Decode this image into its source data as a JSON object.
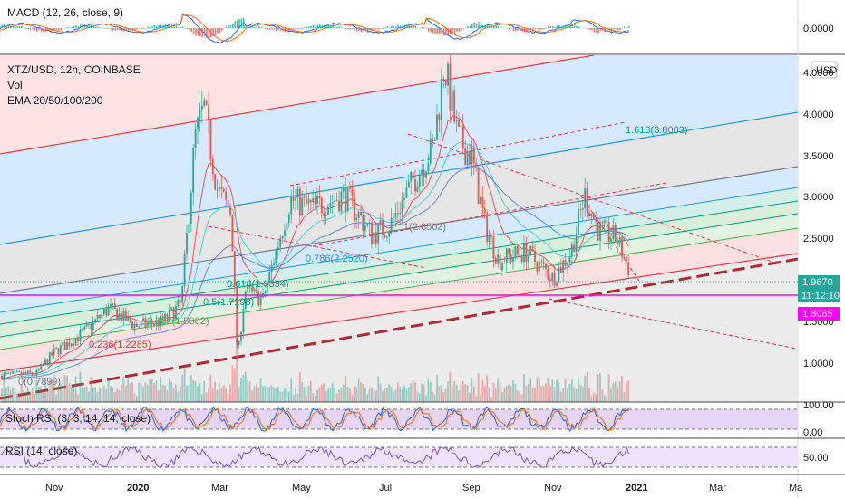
{
  "colors": {
    "background": "#ffffff",
    "up": "#26a69a",
    "down": "#ef5350",
    "macd_line": "#2962ff",
    "signal_line": "#ff6d00",
    "rsi_line": "#7e57c2",
    "stoch_k": "#2962ff",
    "stoch_d": "#ff6d00",
    "price_line": "#ff00ff",
    "trend_red": "#f23645",
    "grid": "#f0f3fa"
  },
  "panes": {
    "macd": {
      "label": "MACD (12, 26, close, 9)",
      "axis_value": "0.0000"
    },
    "price": {
      "legend": [
        "XTZ/USD, 12h, COINBASE",
        "Vol",
        "EMA 20/50/100/200"
      ],
      "currency_badge": "USD",
      "axis_ticks": [
        "4.0000",
        "3.5000",
        "3.0000",
        "2.5000",
        "1.5000",
        "1.0000"
      ],
      "current_price": "1.9670",
      "countdown": "11:12:10",
      "line_price": "1.8085"
    },
    "stoch": {
      "label": "Stoch RSI (3, 3, 14, 14, close)",
      "axis_ticks": [
        "100.00",
        "0.00"
      ]
    },
    "rsi": {
      "label": "RSI (14, close)",
      "axis_ticks": [
        "50.00"
      ]
    }
  },
  "fib_labels": [
    {
      "text": "1.618(3.8003)",
      "color": "#089981"
    },
    {
      "text": "1(2.6502)",
      "color": "#787b86"
    },
    {
      "text": "0.786(2.2520)",
      "color": "#2196f3"
    },
    {
      "text": "0.618(1.9394)",
      "color": "#089981"
    },
    {
      "text": "0.5(1.7198)",
      "color": "#089981"
    },
    {
      "text": "0.382(1.5002)",
      "color": "#4caf50"
    },
    {
      "text": "0.236(1.2285)",
      "color": "#f23645"
    },
    {
      "text": "0(0.7899)",
      "color": "#787b86"
    }
  ],
  "x_axis_labels": [
    "Nov",
    "2020",
    "Mar",
    "May",
    "Jul",
    "Sep",
    "Nov",
    "2021",
    "Mar",
    "Ma"
  ],
  "chart_data": {
    "type": "line",
    "x": [
      "Nov",
      "2020",
      "Mar",
      "May",
      "Jul",
      "Sep",
      "Nov",
      "2021"
    ],
    "close": [
      0.82,
      1.4,
      1.95,
      2.75,
      2.45,
      3.55,
      2.15,
      1.97
    ],
    "ylim": [
      0.6,
      4.3
    ],
    "current_price": 1.967,
    "horizontal_line": 1.8085
  }
}
